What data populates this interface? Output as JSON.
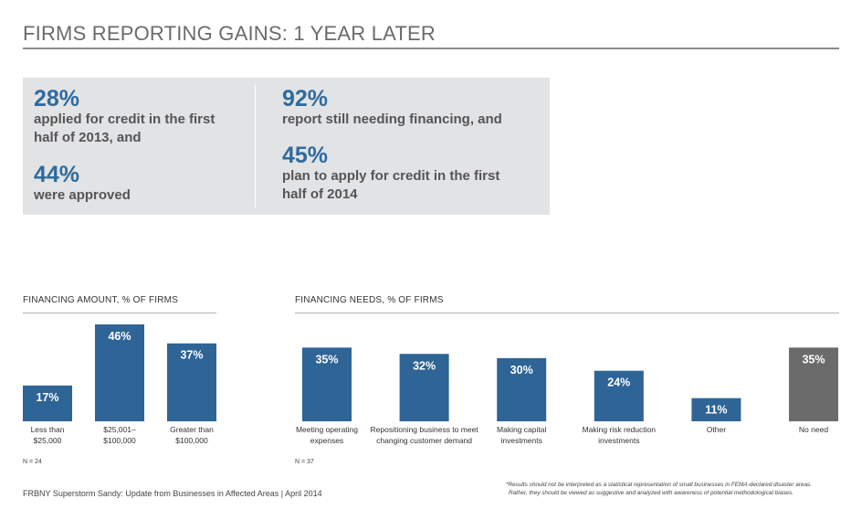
{
  "page": {
    "title": "FIRMS REPORTING GAINS: 1 YEAR LATER",
    "footer": "FRBNY Superstorm Sandy: Update from Businesses in Affected Areas | April 2014",
    "footnote_lines": [
      "*Results should not be interpreted as a statistical representation of small businesses in FEMA-declared disaster areas.",
      "Rather, they should be viewed as suggestive and analyzed with awareness of potential methodological biases."
    ]
  },
  "stats": {
    "left": [
      {
        "value": "28%",
        "lines": [
          "applied for credit in the first",
          "half of 2013, and"
        ]
      },
      {
        "value": "44%",
        "lines": [
          "were approved"
        ]
      }
    ],
    "right": [
      {
        "value": "92%",
        "lines": [
          "report still needing financing, and"
        ]
      },
      {
        "value": "45%",
        "lines": [
          "plan to apply for credit in the first",
          "half of 2014"
        ]
      }
    ]
  },
  "colors": {
    "bar": "#2e6496",
    "bar_alt": "#6b6b6b",
    "accent": "#2e6b9e",
    "box_bg": "#e2e3e5"
  },
  "chart_data": [
    {
      "type": "bar",
      "title": "FINANCING AMOUNT, % OF FIRMS",
      "categories": [
        [
          "Less than",
          "$25,000"
        ],
        [
          "$25,001–",
          "$100,000"
        ],
        [
          "Greater than",
          "$100,000"
        ]
      ],
      "values": [
        17,
        46,
        37
      ],
      "value_labels": [
        "17%",
        "46%",
        "37%"
      ],
      "colors": [
        "#2e6496",
        "#2e6496",
        "#2e6496"
      ],
      "note": "N = 24",
      "ylim": [
        0,
        46
      ]
    },
    {
      "type": "bar",
      "title": "FINANCING NEEDS, % OF FIRMS",
      "categories": [
        [
          "Meeting operating",
          "expenses"
        ],
        [
          "Repositioning business to meet",
          "changing customer demand"
        ],
        [
          "Making capital",
          "investments"
        ],
        [
          "Making risk reduction",
          "investments"
        ],
        [
          "Other"
        ],
        [
          "No need"
        ]
      ],
      "values": [
        35,
        32,
        30,
        24,
        11,
        35
      ],
      "value_labels": [
        "35%",
        "32%",
        "30%",
        "24%",
        "11%",
        "35%"
      ],
      "colors": [
        "#2e6496",
        "#2e6496",
        "#2e6496",
        "#2e6496",
        "#2e6496",
        "#6b6b6b"
      ],
      "note": "N = 37",
      "ylim": [
        0,
        46
      ]
    }
  ]
}
